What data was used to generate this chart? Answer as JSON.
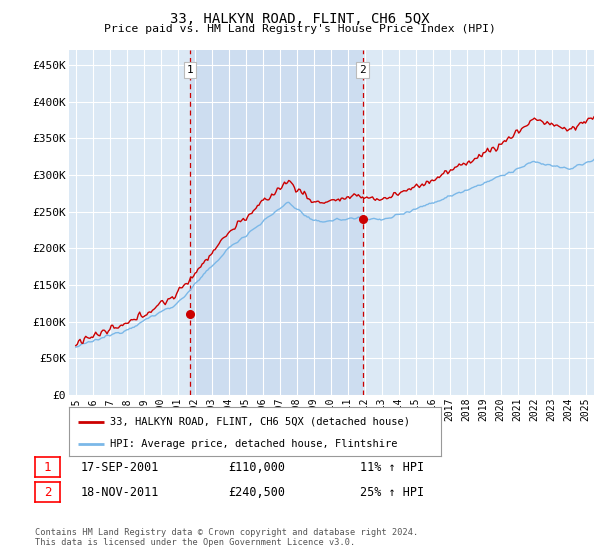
{
  "title": "33, HALKYN ROAD, FLINT, CH6 5QX",
  "subtitle": "Price paid vs. HM Land Registry's House Price Index (HPI)",
  "ylabel_ticks": [
    "£0",
    "£50K",
    "£100K",
    "£150K",
    "£200K",
    "£250K",
    "£300K",
    "£350K",
    "£400K",
    "£450K"
  ],
  "ytick_values": [
    0,
    50000,
    100000,
    150000,
    200000,
    250000,
    300000,
    350000,
    400000,
    450000
  ],
  "ylim": [
    0,
    470000
  ],
  "xlim_start": 1994.6,
  "xlim_end": 2025.5,
  "background_plot": "#dce9f5",
  "background_fig": "#ffffff",
  "grid_color": "#ffffff",
  "hpi_color": "#7bb8e8",
  "price_color": "#cc0000",
  "transaction1_date": 2001.71,
  "transaction1_price": 110000,
  "transaction2_date": 2011.88,
  "transaction2_price": 240500,
  "shade_color": "#c5d9ef",
  "legend_house_label": "33, HALKYN ROAD, FLINT, CH6 5QX (detached house)",
  "legend_hpi_label": "HPI: Average price, detached house, Flintshire",
  "ann1_date": "17-SEP-2001",
  "ann1_price": "£110,000",
  "ann1_hpi": "11% ↑ HPI",
  "ann2_date": "18-NOV-2011",
  "ann2_price": "£240,500",
  "ann2_hpi": "25% ↑ HPI",
  "footer": "Contains HM Land Registry data © Crown copyright and database right 2024.\nThis data is licensed under the Open Government Licence v3.0.",
  "dashed_line1_x": 2001.71,
  "dashed_line2_x": 2011.88
}
